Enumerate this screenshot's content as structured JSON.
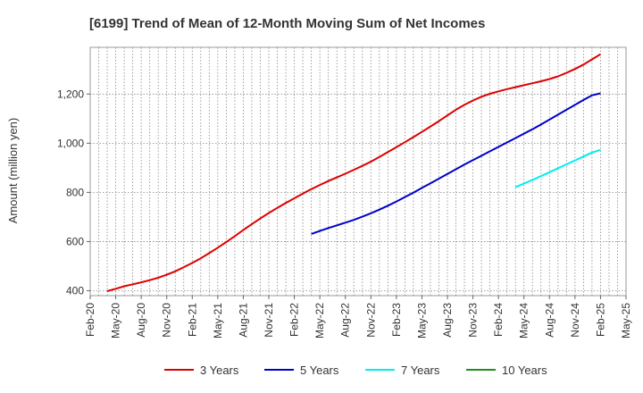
{
  "chart_data": {
    "type": "line",
    "title": "[6199]  Trend of Mean of 12-Month Moving Sum of Net Incomes",
    "xlabel": "",
    "ylabel": "Amount (million yen)",
    "ylim": [
      380,
      1390
    ],
    "yticks": [
      400,
      600,
      800,
      1000,
      1200
    ],
    "ytick_labels": [
      "400",
      "600",
      "800",
      "1,000",
      "1,200"
    ],
    "xticks": [
      "Feb-20",
      "May-20",
      "Aug-20",
      "Nov-20",
      "Feb-21",
      "May-21",
      "Aug-21",
      "Nov-21",
      "Feb-22",
      "May-22",
      "Aug-22",
      "Nov-22",
      "Feb-23",
      "May-23",
      "Aug-23",
      "Nov-23",
      "Feb-24",
      "May-24",
      "Aug-24",
      "Nov-24",
      "Feb-25",
      "May-25"
    ],
    "grid": true,
    "legend_position": "bottom",
    "series": [
      {
        "name": "3 Years",
        "color": "#dd0000",
        "x": [
          "Apr-20",
          "May-20",
          "Jun-20",
          "Jul-20",
          "Aug-20",
          "Sep-20",
          "Oct-20",
          "Nov-20",
          "Dec-20",
          "Jan-21",
          "Feb-21",
          "Mar-21",
          "Apr-21",
          "May-21",
          "Jun-21",
          "Jul-21",
          "Aug-21",
          "Sep-21",
          "Oct-21",
          "Nov-21",
          "Dec-21",
          "Jan-22",
          "Feb-22",
          "Mar-22",
          "Apr-22",
          "May-22",
          "Jun-22",
          "Jul-22",
          "Aug-22",
          "Sep-22",
          "Oct-22",
          "Nov-22",
          "Dec-22",
          "Jan-23",
          "Feb-23",
          "Mar-23",
          "Apr-23",
          "May-23",
          "Jun-23",
          "Jul-23",
          "Aug-23",
          "Sep-23",
          "Oct-23",
          "Nov-23",
          "Dec-23",
          "Jan-24",
          "Feb-24",
          "Mar-24",
          "Apr-24",
          "May-24",
          "Jun-24",
          "Jul-24",
          "Aug-24",
          "Sep-24",
          "Oct-24",
          "Nov-24",
          "Dec-24",
          "Jan-25",
          "Feb-25"
        ],
        "values": [
          398,
          408,
          418,
          426,
          434,
          443,
          453,
          465,
          479,
          496,
          513,
          532,
          553,
          575,
          598,
          622,
          647,
          671,
          694,
          716,
          737,
          757,
          776,
          795,
          813,
          830,
          846,
          861,
          876,
          892,
          908,
          925,
          944,
          964,
          984,
          1004,
          1025,
          1046,
          1068,
          1090,
          1113,
          1136,
          1156,
          1174,
          1189,
          1201,
          1211,
          1220,
          1228,
          1236,
          1244,
          1252,
          1261,
          1272,
          1286,
          1302,
          1320,
          1341,
          1362
        ]
      },
      {
        "name": "5 Years",
        "color": "#0000cc",
        "x": [
          "Apr-22",
          "May-22",
          "Jun-22",
          "Jul-22",
          "Aug-22",
          "Sep-22",
          "Oct-22",
          "Nov-22",
          "Dec-22",
          "Jan-23",
          "Feb-23",
          "Mar-23",
          "Apr-23",
          "May-23",
          "Jun-23",
          "Jul-23",
          "Aug-23",
          "Sep-23",
          "Oct-23",
          "Nov-23",
          "Dec-23",
          "Jan-24",
          "Feb-24",
          "Mar-24",
          "Apr-24",
          "May-24",
          "Jun-24",
          "Jul-24",
          "Aug-24",
          "Sep-24",
          "Oct-24",
          "Nov-24",
          "Dec-24",
          "Jan-25",
          "Feb-25"
        ],
        "values": [
          631,
          643,
          655,
          666,
          677,
          688,
          701,
          715,
          730,
          746,
          763,
          781,
          799,
          818,
          837,
          856,
          875,
          894,
          913,
          931,
          949,
          967,
          985,
          1003,
          1021,
          1039,
          1057,
          1076,
          1096,
          1116,
          1136,
          1156,
          1176,
          1195,
          1203
        ]
      },
      {
        "name": "7 Years",
        "color": "#00eeee",
        "x": [
          "Apr-24",
          "May-24",
          "Jun-24",
          "Jul-24",
          "Aug-24",
          "Sep-24",
          "Oct-24",
          "Nov-24",
          "Dec-24",
          "Jan-25",
          "Feb-25"
        ],
        "values": [
          821,
          836,
          851,
          866,
          882,
          898,
          914,
          930,
          946,
          962,
          973
        ]
      },
      {
        "name": "10 Years",
        "color": "#228b22",
        "x": [],
        "values": []
      }
    ]
  }
}
